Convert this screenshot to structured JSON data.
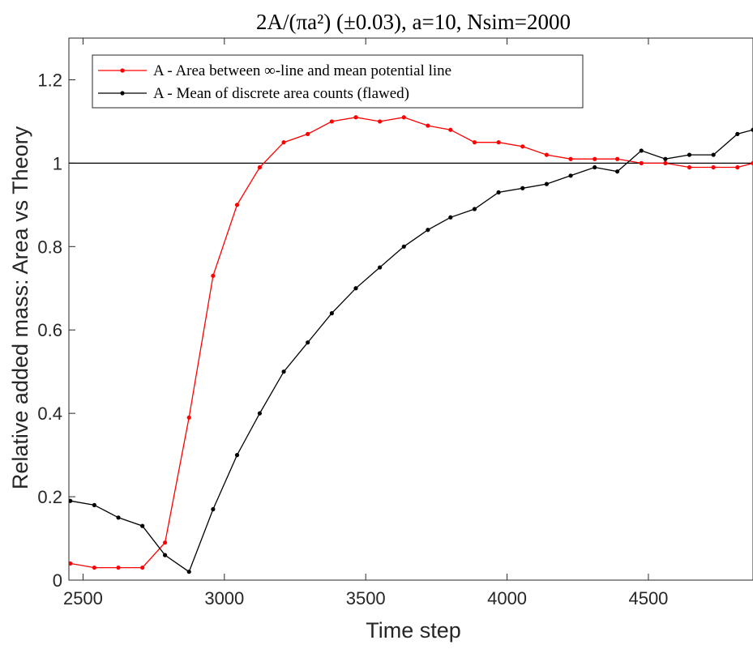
{
  "chart_data": {
    "type": "line",
    "title": "2A/(πa²) (±0.03), a=10, Nsim=2000",
    "xlabel": "Time step",
    "ylabel": "Relative added mass: Area vs Theory",
    "xlim": [
      2450,
      4870
    ],
    "ylim": [
      0,
      1.3
    ],
    "xticks": [
      2500,
      3000,
      3500,
      4000,
      4500
    ],
    "yticks": [
      0,
      0.2,
      0.4,
      0.6,
      0.8,
      1,
      1.2
    ],
    "xtick_labels": [
      "2500",
      "3000",
      "3500",
      "4000",
      "4500"
    ],
    "ytick_labels": [
      "0",
      "0.2",
      "0.4",
      "0.6",
      "0.8",
      "1",
      "1.2"
    ],
    "grid": false,
    "legend_position": "top-left",
    "reference_line": {
      "y": 1,
      "color": "#000000"
    },
    "series": [
      {
        "name": "A - Area between ∞-line and mean potential line",
        "color": "#ff0000",
        "x": [
          2455,
          2540,
          2625,
          2710,
          2790,
          2875,
          2960,
          3045,
          3125,
          3210,
          3295,
          3380,
          3465,
          3550,
          3635,
          3720,
          3800,
          3885,
          3970,
          4055,
          4140,
          4225,
          4310,
          4390,
          4475,
          4560,
          4645,
          4730,
          4815,
          4870
        ],
        "y": [
          0.04,
          0.03,
          0.03,
          0.03,
          0.09,
          0.39,
          0.73,
          0.9,
          0.99,
          1.05,
          1.07,
          1.1,
          1.11,
          1.1,
          1.11,
          1.09,
          1.08,
          1.05,
          1.05,
          1.04,
          1.02,
          1.01,
          1.01,
          1.01,
          1.0,
          1.0,
          0.99,
          0.99,
          0.99,
          1.0
        ]
      },
      {
        "name": "A - Mean of discrete area counts (flawed)",
        "color": "#000000",
        "x": [
          2455,
          2540,
          2625,
          2710,
          2790,
          2875,
          2960,
          3045,
          3125,
          3210,
          3295,
          3380,
          3465,
          3550,
          3635,
          3720,
          3800,
          3885,
          3970,
          4055,
          4140,
          4225,
          4310,
          4390,
          4475,
          4560,
          4645,
          4730,
          4815,
          4870
        ],
        "y": [
          0.19,
          0.18,
          0.15,
          0.13,
          0.06,
          0.02,
          0.17,
          0.3,
          0.4,
          0.5,
          0.57,
          0.64,
          0.7,
          0.75,
          0.8,
          0.84,
          0.87,
          0.89,
          0.93,
          0.94,
          0.95,
          0.97,
          0.99,
          0.98,
          1.03,
          1.01,
          1.02,
          1.02,
          1.07,
          1.08
        ]
      }
    ]
  }
}
